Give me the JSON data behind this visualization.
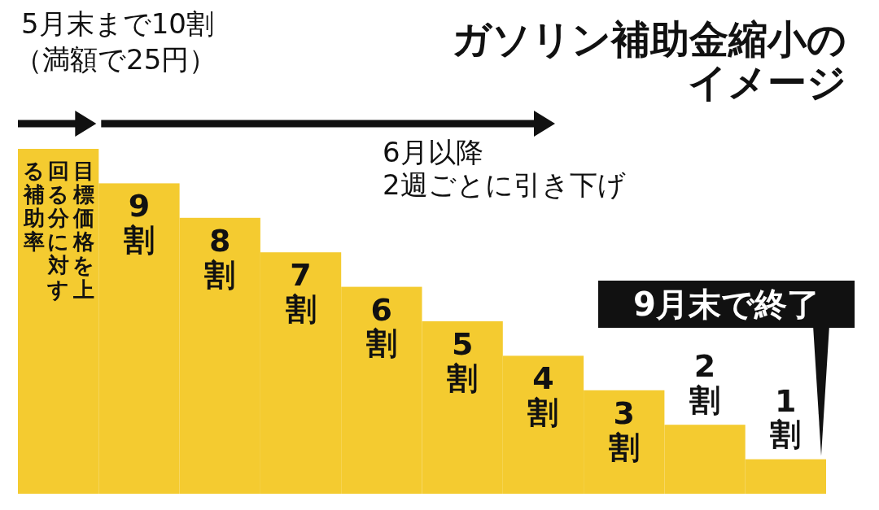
{
  "chart_data": {
    "type": "bar",
    "title": "ガソリン補助金縮小のイメージ",
    "categories": [
      null,
      null,
      null,
      null,
      null,
      null,
      null,
      null,
      null,
      null
    ],
    "values": [
      10,
      9,
      8,
      7,
      6,
      5,
      4,
      3,
      2,
      1
    ],
    "color": "#f4cb30",
    "value_labels": [
      null,
      "9割",
      "8割",
      "7割",
      "6割",
      "5割",
      "4割",
      "3割",
      "2割",
      "1割"
    ],
    "annotations": [
      "5月末まで10割",
      "（満額で25円）",
      "6月以降",
      "2週ごとに引き下げ",
      "9月末で終了",
      "目標価格を上回る分に対する補助率"
    ]
  }
}
